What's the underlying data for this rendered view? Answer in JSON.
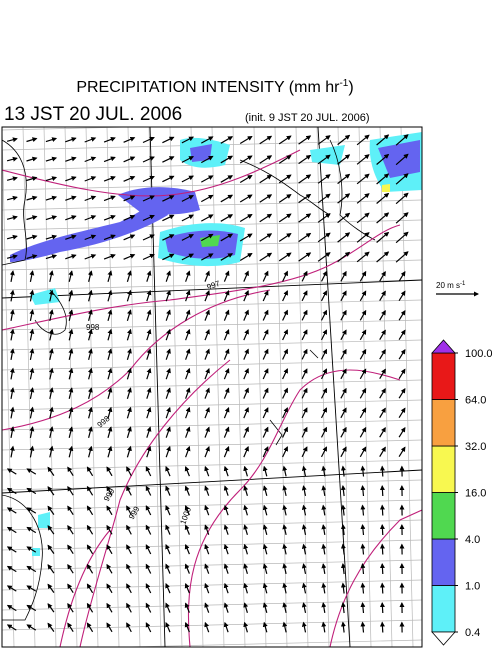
{
  "header": {
    "title": {
      "main": "PRECIPITATION INTENSITY (mm hr",
      "exponent": "-1",
      "close": ")"
    },
    "valid_time": "13 JST 20 JUL. 2006",
    "init_time": "(init. 9 JST 20 JUL. 2006)"
  },
  "wind_scale": {
    "label": "20 m s",
    "exponent": "-1"
  },
  "contour_labels": [
    "997",
    "998",
    "998",
    "999",
    "999",
    "1000"
  ],
  "colorbar": {
    "levels": [
      0.4,
      {
        "value": 1,
        "label": "1.0"
      },
      {
        "value": 4,
        "label": "4.0"
      },
      {
        "value": 16,
        "label": "16.0"
      },
      {
        "value": 32,
        "label": "32.0"
      },
      {
        "value": 64,
        "label": "64.0"
      },
      {
        "value": 100,
        "label": "100.0"
      }
    ],
    "colors": [
      "#5ef0f8",
      "#6464f0",
      "#50d850",
      "#f8f850",
      "#f8a040",
      "#e81818"
    ],
    "under_color": "#ffffff",
    "over_color": "#a030e8"
  }
}
